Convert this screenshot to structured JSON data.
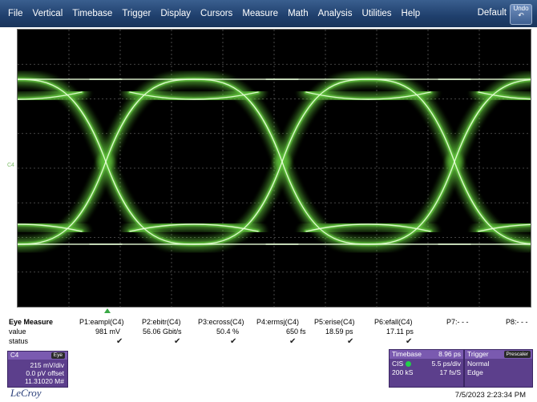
{
  "menu": {
    "items": [
      "File",
      "Vertical",
      "Timebase",
      "Trigger",
      "Display",
      "Cursors",
      "Measure",
      "Math",
      "Analysis",
      "Utilities",
      "Help"
    ],
    "default_label": "Default",
    "undo_label": "Undo"
  },
  "screen": {
    "channel_marker": "C4",
    "trace_color": "#5dbf3a"
  },
  "measure": {
    "title": "Eye Measure",
    "row_labels": [
      "value",
      "status"
    ],
    "params": [
      {
        "name": "P1:eampl(C4)",
        "value": "981 mV",
        "status": "check"
      },
      {
        "name": "P2:ebitr(C4)",
        "value": "56.06 Gbit/s",
        "status": "check"
      },
      {
        "name": "P3:ecross(C4)",
        "value": "50.4 %",
        "status": "check"
      },
      {
        "name": "P4:ermsj(C4)",
        "value": "650 fs",
        "status": "check"
      },
      {
        "name": "P5:erise(C4)",
        "value": "18.59 ps",
        "status": "check"
      },
      {
        "name": "P6:efall(C4)",
        "value": "17.11 ps",
        "status": "check"
      },
      {
        "name": "P7:- - -",
        "value": "",
        "status": ""
      },
      {
        "name": "P8:- - -",
        "value": "",
        "status": ""
      }
    ]
  },
  "channel": {
    "name": "C4",
    "badge": "Eye",
    "scale": "215 mV/div",
    "offset": "0.0 pV offset",
    "count": "11.31020 M#"
  },
  "timebase": {
    "title": "Timebase",
    "delay": "8.96 ps",
    "mode": "CIS",
    "per_div": "5.5 ps/div",
    "samples": "200 kS",
    "rate": "17 fs/S"
  },
  "trigger": {
    "title": "Trigger",
    "badge": "Prescaler",
    "mode": "Normal",
    "type": "Edge"
  },
  "brand": "LeCroy",
  "timestamp": "7/5/2023 2:23:34 PM"
}
